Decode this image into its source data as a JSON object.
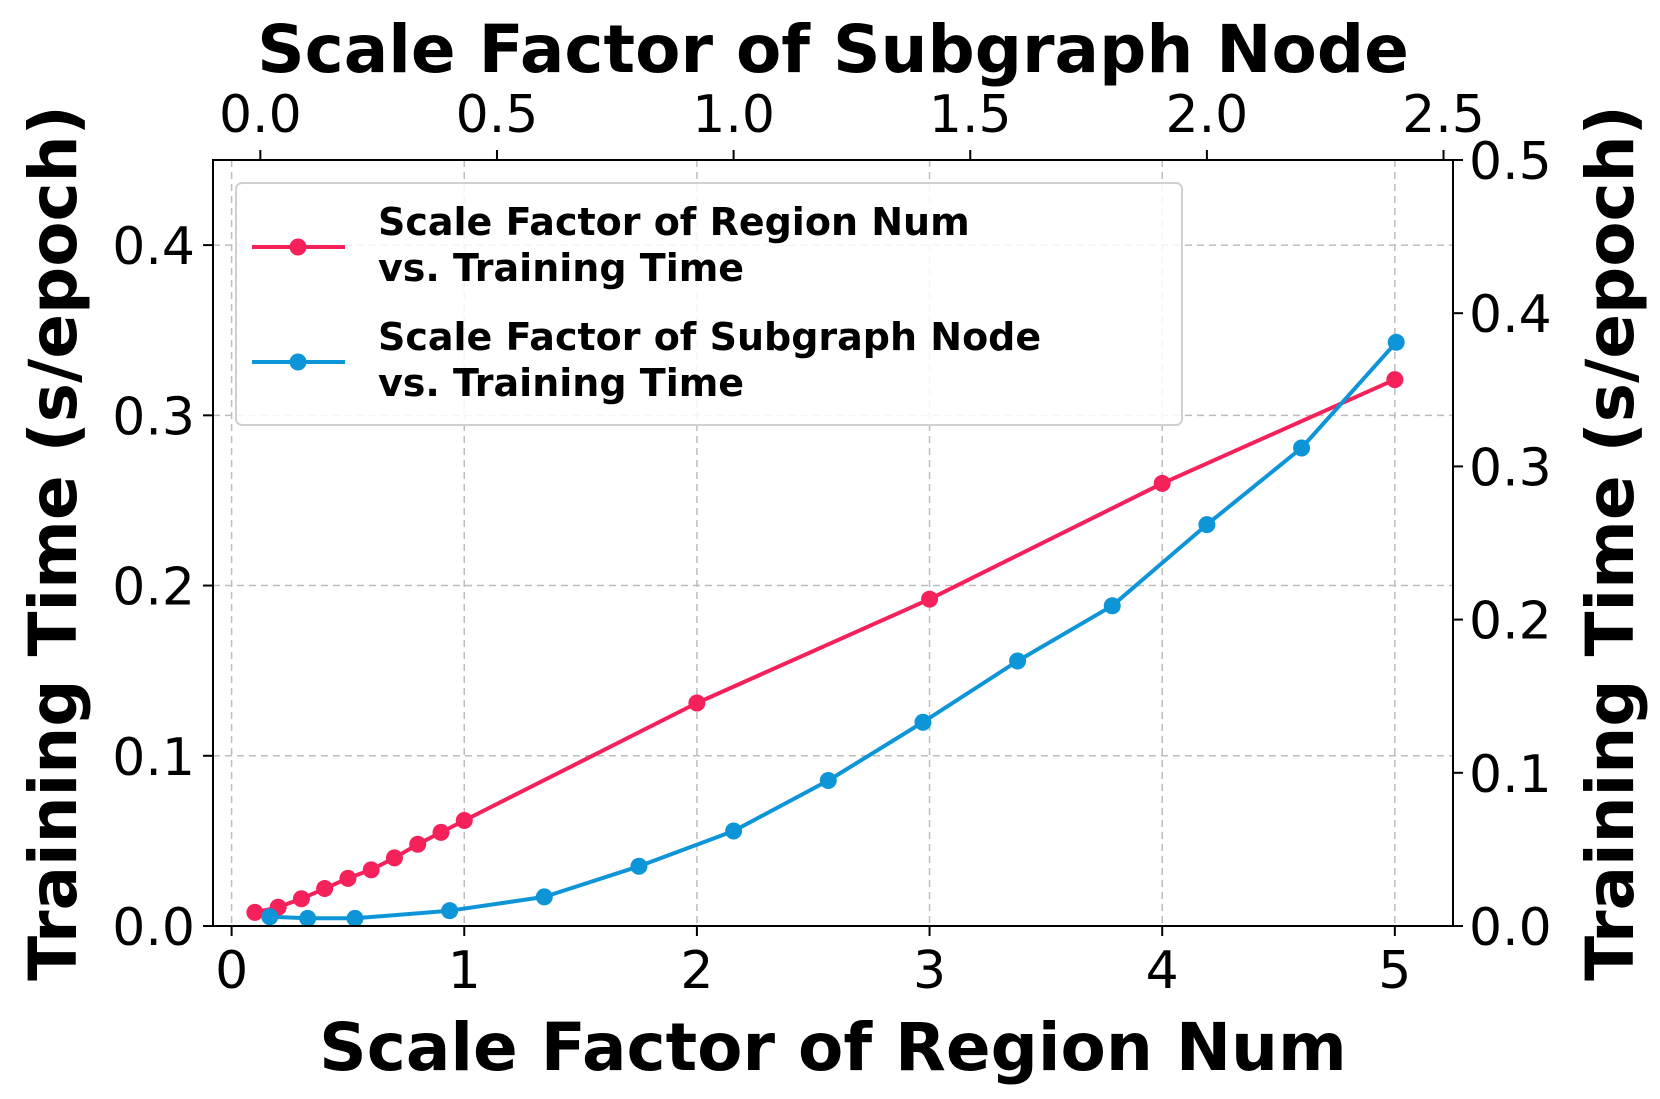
{
  "chart_data": {
    "type": "line",
    "x_bottom": {
      "label": "Scale Factor of Region Num",
      "range": [
        -0.08,
        5.25
      ],
      "ticks": [
        0,
        1,
        2,
        3,
        4,
        5
      ],
      "tick_labels": [
        "0",
        "1",
        "2",
        "3",
        "4",
        "5"
      ]
    },
    "x_top": {
      "label": "Scale Factor of Subgraph Node",
      "range": [
        -0.1,
        2.52
      ],
      "ticks": [
        0.0,
        0.5,
        1.0,
        1.5,
        2.0,
        2.5
      ],
      "tick_labels": [
        "0.0",
        "0.5",
        "1.0",
        "1.5",
        "2.0",
        "2.5"
      ]
    },
    "y_left": {
      "label": "Training Time (s/epoch)",
      "range": [
        0,
        0.45
      ],
      "ticks": [
        0.0,
        0.1,
        0.2,
        0.3,
        0.4
      ],
      "tick_labels": [
        "0.0",
        "0.1",
        "0.2",
        "0.3",
        "0.4"
      ]
    },
    "y_right": {
      "label": "Training Time (s/epoch)",
      "range": [
        0,
        0.5
      ],
      "ticks": [
        0.0,
        0.1,
        0.2,
        0.3,
        0.4,
        0.5
      ],
      "tick_labels": [
        "0.0",
        "0.1",
        "0.2",
        "0.3",
        "0.4",
        "0.5"
      ]
    },
    "grid": true,
    "legend_position": "top-left",
    "series": [
      {
        "name": "Scale Factor of Region Num vs. Training Time",
        "legend_lines": [
          "Scale Factor of Region Num",
          "vs. Training Time"
        ],
        "color": "#f5215a",
        "x_axis": "bottom",
        "y_axis": "left",
        "x": [
          0.1,
          0.2,
          0.3,
          0.4,
          0.5,
          0.6,
          0.7,
          0.8,
          0.9,
          1.0,
          2.0,
          3.0,
          4.0,
          5.0
        ],
        "y": [
          0.008,
          0.011,
          0.016,
          0.022,
          0.028,
          0.033,
          0.04,
          0.048,
          0.055,
          0.062,
          0.131,
          0.192,
          0.26,
          0.321
        ]
      },
      {
        "name": "Scale Factor of Subgraph Node vs. Training Time",
        "legend_lines": [
          "Scale Factor of Subgraph Node",
          "vs. Training Time"
        ],
        "color": "#0e95d8",
        "x_axis": "top",
        "y_axis": "right",
        "x": [
          0.02,
          0.1,
          0.2,
          0.4,
          0.6,
          0.8,
          1.0,
          1.2,
          1.4,
          1.6,
          1.8,
          2.0,
          2.2,
          2.4
        ],
        "y": [
          0.006,
          0.005,
          0.005,
          0.01,
          0.019,
          0.039,
          0.062,
          0.095,
          0.133,
          0.173,
          0.209,
          0.262,
          0.312,
          0.381
        ]
      }
    ]
  }
}
